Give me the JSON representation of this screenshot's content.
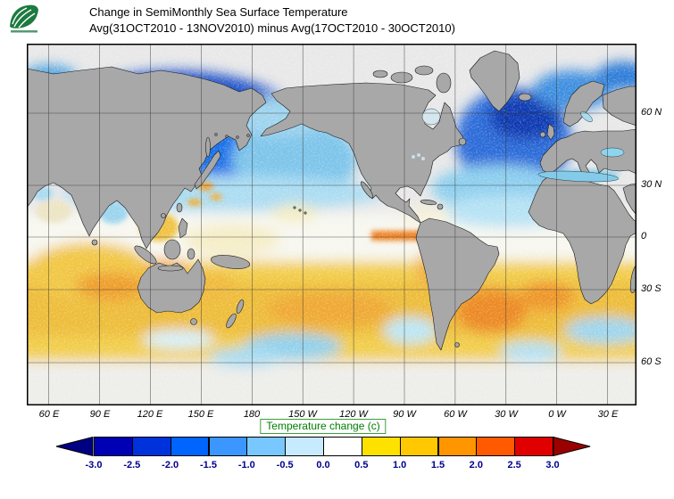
{
  "header": {
    "line1": "Change in SemiMonthly Sea Surface Temperature",
    "line2": "Avg(31OCT2010 - 13NOV2010) minus Avg(17OCT2010 - 30OCT2010)"
  },
  "map": {
    "lat_labels": [
      "60 N",
      "30 N",
      "0",
      "30 S",
      "60 S"
    ],
    "lon_labels": [
      "60 E",
      "90 E",
      "120 E",
      "150 E",
      "180",
      "150 W",
      "120 W",
      "90 W",
      "60 W",
      "30 W",
      "0 W",
      "30 E"
    ],
    "land_color": "#a8a8a8"
  },
  "colorbar": {
    "title": "Temperature change  (c)",
    "title_color": "#008000",
    "tick_color": "#00008b",
    "tick_labels": [
      "-3.0",
      "-2.5",
      "-2.0",
      "-1.5",
      "-1.0",
      "-0.5",
      "0.0",
      "0.5",
      "1.0",
      "1.5",
      "2.0",
      "2.5",
      "3.0"
    ],
    "colors": [
      "#000082",
      "#0000b4",
      "#0032dc",
      "#0064ff",
      "#3c96ff",
      "#78c8ff",
      "#c8eaff",
      "#ffffff",
      "#ffe100",
      "#ffc800",
      "#ff9600",
      "#ff5a00",
      "#e10000",
      "#9b0000"
    ]
  },
  "chart_data": {
    "type": "heatmap",
    "title": "Change in SemiMonthly Sea Surface Temperature",
    "subtitle": "Avg(31OCT2010 - 13NOV2010) minus Avg(17OCT2010 - 30OCT2010)",
    "units": "Temperature change (c)",
    "projection": "global cylindrical, Pacific-centered (approx 47E eastward to 47E)",
    "lat_ticks": [
      "60 N",
      "30 N",
      "0",
      "30 S",
      "60 S"
    ],
    "lon_ticks": [
      "60 E",
      "90 E",
      "120 E",
      "150 E",
      "180",
      "150 W",
      "120 W",
      "90 W",
      "60 W",
      "30 W",
      "0 W",
      "30 E"
    ],
    "scale_ticks": [
      -3.0,
      -2.5,
      -2.0,
      -1.5,
      -1.0,
      -0.5,
      0.0,
      0.5,
      1.0,
      1.5,
      2.0,
      2.5,
      3.0
    ],
    "qualitative_pattern": [
      {
        "region": "Northwest and central North Pacific (30N-60N)",
        "change_c": -1.8
      },
      {
        "region": "Sea of Okhotsk / Kuroshio extension",
        "change_c": -2.5
      },
      {
        "region": "Northeast Pacific / Gulf of Alaska",
        "change_c": -0.8
      },
      {
        "region": "Subpolar North Atlantic (40N-60N)",
        "change_c": -1.5
      },
      {
        "region": "Subtropical North Atlantic (10N-35N)",
        "change_c": -0.5
      },
      {
        "region": "Mediterranean Sea",
        "change_c": -0.7
      },
      {
        "region": "Equatorial band (10S-10N)",
        "change_c": 0.2
      },
      {
        "region": "Eastern equatorial Pacific narrow strip",
        "change_c": 1.5
      },
      {
        "region": "Southern-hemisphere subtropics 15S-45S (Indian, Pacific, Atlantic)",
        "change_c": 0.8
      },
      {
        "region": "Argentine Basin / southwest Atlantic",
        "change_c": 1.8
      },
      {
        "region": "Tasman Sea and south of New Zealand",
        "change_c": -0.6
      },
      {
        "region": "Southern Ocean south of 55S",
        "change_c": -0.2
      }
    ]
  }
}
